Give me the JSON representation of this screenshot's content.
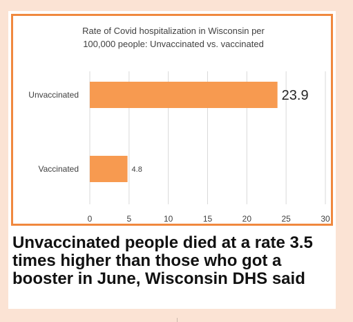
{
  "chart_data": {
    "type": "bar",
    "orientation": "horizontal",
    "title": "Rate of Covid hospitalization in Wisconsin per 100,000 people: Unvaccinated vs. vaccinated",
    "title_lines": [
      "Rate of Covid hospitalization in Wisconsin per",
      "100,000 people: Unvaccinated vs. vaccinated"
    ],
    "categories": [
      "Unvaccinated",
      "Vaccinated"
    ],
    "values": [
      23.9,
      4.8
    ],
    "data_labels": [
      "23.9",
      "4.8"
    ],
    "xlim": [
      0,
      30
    ],
    "x_ticks": [
      0,
      5,
      10,
      15,
      20,
      25,
      30
    ],
    "bar_color": "#f79a50",
    "grid": true,
    "xlabel": "",
    "ylabel": ""
  },
  "headline": "Unvaccinated people died at a rate 3.5 times higher than those who got a booster in June, Wisconsin DHS said",
  "colors": {
    "frame_border": "#f0883e",
    "background": "#fbe3d4"
  }
}
